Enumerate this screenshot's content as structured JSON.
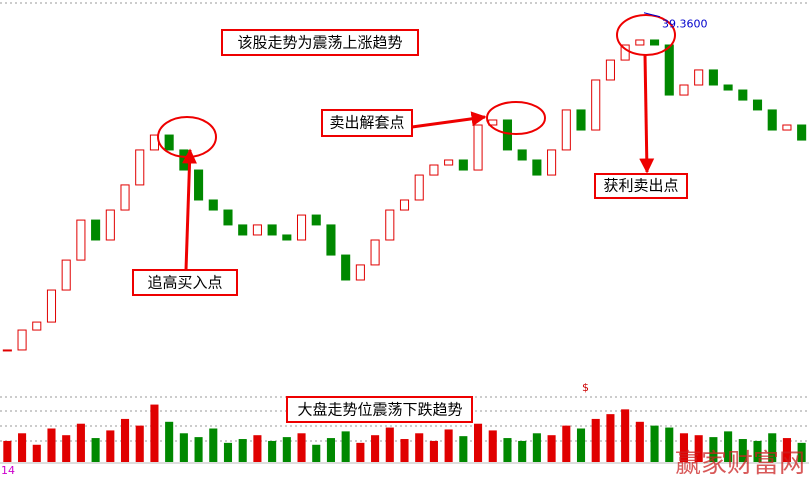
{
  "chart_data": {
    "type": "candlestick",
    "categories": [
      null,
      null,
      null,
      null,
      null,
      null,
      null,
      null,
      null,
      null,
      null,
      null,
      null,
      null,
      null,
      null,
      null,
      null,
      null,
      null,
      null,
      null,
      null,
      null,
      null,
      null,
      null,
      null,
      null,
      null,
      null,
      null,
      null,
      null,
      null,
      null,
      null,
      null,
      null,
      null,
      null,
      null,
      null,
      null,
      null,
      null,
      null,
      null,
      null,
      null,
      null,
      null,
      null,
      null,
      null
    ],
    "closes": [
      20.58,
      21.73,
      22.19,
      24.04,
      25.77,
      28.08,
      26.93,
      28.66,
      30.11,
      32.13,
      32.99,
      32.13,
      30.97,
      29.24,
      28.66,
      27.8,
      27.22,
      27.8,
      27.22,
      26.93,
      28.37,
      27.8,
      26.06,
      24.62,
      25.49,
      26.93,
      28.66,
      29.24,
      30.68,
      31.26,
      31.55,
      30.97,
      33.57,
      33.86,
      32.13,
      31.55,
      30.68,
      32.13,
      34.44,
      33.28,
      36.17,
      37.32,
      38.19,
      38.48,
      38.19,
      35.3,
      35.88,
      36.75,
      35.88,
      35.59,
      35.01,
      34.44,
      33.28,
      33.57,
      32.7
    ],
    "volumes": [
      22,
      30,
      18,
      35,
      28,
      40,
      25,
      33,
      45,
      38,
      60,
      42,
      30,
      26,
      35,
      20,
      24,
      28,
      22,
      26,
      30,
      18,
      25,
      32,
      20,
      28,
      36,
      24,
      30,
      22,
      34,
      27,
      40,
      33,
      25,
      22,
      30,
      28,
      38,
      35,
      45,
      50,
      55,
      42,
      38,
      36,
      30,
      28,
      26,
      32,
      24,
      22,
      30,
      25,
      20
    ],
    "ylim": [
      20,
      40.5
    ],
    "vlim": [
      0,
      70
    ],
    "up_color": "#e00000",
    "down_color": "#008800",
    "high_label": {
      "value": 39.36,
      "label": "39.3600"
    },
    "annotations": [
      "该股走势为震荡上涨趋势",
      "卖出解套点",
      "追高买入点",
      "获利卖出点",
      "大盘走势位震荡下跌趋势"
    ],
    "volume_indicator": "14",
    "marker": "$",
    "watermark": "赢家财富网"
  }
}
